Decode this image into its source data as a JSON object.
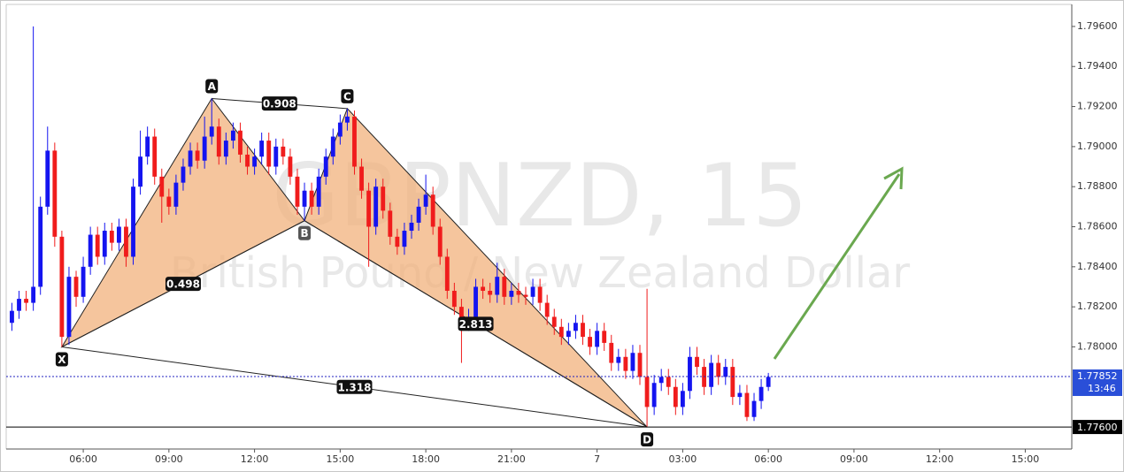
{
  "chart_data": {
    "type": "candlestick",
    "title": "GBPNZD, 15",
    "subtitle": "British Pound / New Zealand Dollar",
    "up_color": "#1414f0",
    "down_color": "#f01c1c",
    "x": [
      3.5,
      3.75,
      4,
      4.25,
      4.5,
      4.75,
      5,
      5.25,
      5.5,
      5.75,
      6,
      6.25,
      6.5,
      6.75,
      7,
      7.25,
      7.5,
      7.75,
      8,
      8.25,
      8.5,
      8.75,
      9,
      9.25,
      9.5,
      9.75,
      10,
      10.25,
      10.5,
      10.75,
      11,
      11.25,
      11.5,
      11.75,
      12,
      12.25,
      12.5,
      12.75,
      13,
      13.25,
      13.5,
      13.75,
      14,
      14.25,
      14.5,
      14.75,
      15,
      15.25,
      15.5,
      15.75,
      16,
      16.25,
      16.5,
      16.75,
      17,
      17.25,
      17.5,
      17.75,
      18,
      18.25,
      18.5,
      18.75,
      19,
      19.25,
      19.5,
      19.75,
      20,
      20.25,
      20.5,
      20.75,
      21,
      21.25,
      21.5,
      21.75,
      22,
      22.25,
      22.5,
      22.75,
      23,
      23.25,
      23.5,
      23.75,
      24,
      24.25,
      24.5,
      24.75,
      25,
      25.25,
      25.5,
      25.75,
      26,
      26.25,
      26.5,
      26.75,
      27,
      27.25,
      27.5,
      27.75,
      28,
      28.25,
      28.5,
      28.75,
      29,
      29.25,
      29.5,
      29.75,
      30
    ],
    "ohlc": [
      [
        1.7812,
        1.7822,
        1.7808,
        1.7818
      ],
      [
        1.7818,
        1.7828,
        1.7814,
        1.7824
      ],
      [
        1.7824,
        1.7828,
        1.7818,
        1.7822
      ],
      [
        1.7822,
        1.796,
        1.7818,
        1.783
      ],
      [
        1.783,
        1.7875,
        1.7826,
        1.787
      ],
      [
        1.787,
        1.791,
        1.7866,
        1.7898
      ],
      [
        1.7898,
        1.7902,
        1.785,
        1.7855
      ],
      [
        1.7855,
        1.7858,
        1.78,
        1.7805
      ],
      [
        1.7805,
        1.784,
        1.7801,
        1.7835
      ],
      [
        1.7835,
        1.7838,
        1.782,
        1.7825
      ],
      [
        1.7825,
        1.7845,
        1.7822,
        1.784
      ],
      [
        1.784,
        1.786,
        1.7836,
        1.7856
      ],
      [
        1.7856,
        1.786,
        1.7841,
        1.7845
      ],
      [
        1.7845,
        1.7862,
        1.7841,
        1.7858
      ],
      [
        1.7858,
        1.7862,
        1.7848,
        1.7852
      ],
      [
        1.7852,
        1.7864,
        1.7848,
        1.786
      ],
      [
        1.786,
        1.7864,
        1.784,
        1.7845
      ],
      [
        1.7845,
        1.7884,
        1.7841,
        1.788
      ],
      [
        1.788,
        1.7908,
        1.7876,
        1.7895
      ],
      [
        1.7895,
        1.791,
        1.7891,
        1.7905
      ],
      [
        1.7905,
        1.7909,
        1.7881,
        1.7885
      ],
      [
        1.7885,
        1.7889,
        1.7862,
        1.7875
      ],
      [
        1.7875,
        1.7879,
        1.7866,
        1.787
      ],
      [
        1.787,
        1.7886,
        1.7866,
        1.7882
      ],
      [
        1.7882,
        1.7894,
        1.7878,
        1.789
      ],
      [
        1.789,
        1.7902,
        1.7886,
        1.7898
      ],
      [
        1.7898,
        1.7902,
        1.7889,
        1.7893
      ],
      [
        1.7893,
        1.7915,
        1.7889,
        1.7905
      ],
      [
        1.7905,
        1.7924,
        1.7901,
        1.791
      ],
      [
        1.791,
        1.7914,
        1.7891,
        1.7895
      ],
      [
        1.7895,
        1.7907,
        1.7891,
        1.7903
      ],
      [
        1.7903,
        1.7912,
        1.7899,
        1.7908
      ],
      [
        1.7908,
        1.7912,
        1.7892,
        1.7896
      ],
      [
        1.7896,
        1.79,
        1.7886,
        1.789
      ],
      [
        1.789,
        1.7899,
        1.7886,
        1.7895
      ],
      [
        1.7895,
        1.7907,
        1.7891,
        1.7903
      ],
      [
        1.7903,
        1.7907,
        1.7886,
        1.789
      ],
      [
        1.789,
        1.7904,
        1.7886,
        1.79
      ],
      [
        1.79,
        1.7904,
        1.7891,
        1.7895
      ],
      [
        1.7895,
        1.7899,
        1.7881,
        1.7885
      ],
      [
        1.7885,
        1.7889,
        1.7866,
        1.787
      ],
      [
        1.787,
        1.7882,
        1.7863,
        1.7878
      ],
      [
        1.7878,
        1.7882,
        1.7866,
        1.787
      ],
      [
        1.787,
        1.7889,
        1.7866,
        1.7885
      ],
      [
        1.7885,
        1.7899,
        1.7881,
        1.7895
      ],
      [
        1.7895,
        1.7909,
        1.7891,
        1.7905
      ],
      [
        1.7905,
        1.7916,
        1.7901,
        1.7912
      ],
      [
        1.7912,
        1.7919,
        1.7908,
        1.7915
      ],
      [
        1.7915,
        1.7918,
        1.7886,
        1.789
      ],
      [
        1.789,
        1.7894,
        1.7874,
        1.7878
      ],
      [
        1.7878,
        1.7882,
        1.784,
        1.786
      ],
      [
        1.786,
        1.7884,
        1.7856,
        1.788
      ],
      [
        1.788,
        1.7884,
        1.7864,
        1.7868
      ],
      [
        1.7868,
        1.7872,
        1.7851,
        1.7855
      ],
      [
        1.7855,
        1.7859,
        1.7846,
        1.785
      ],
      [
        1.785,
        1.7862,
        1.7846,
        1.7858
      ],
      [
        1.7858,
        1.7866,
        1.7854,
        1.7862
      ],
      [
        1.7862,
        1.7874,
        1.7858,
        1.787
      ],
      [
        1.787,
        1.7886,
        1.7866,
        1.7876
      ],
      [
        1.7876,
        1.788,
        1.7856,
        1.786
      ],
      [
        1.786,
        1.7864,
        1.7841,
        1.7845
      ],
      [
        1.7845,
        1.7849,
        1.7824,
        1.7828
      ],
      [
        1.7828,
        1.7832,
        1.7816,
        1.782
      ],
      [
        1.782,
        1.7824,
        1.7792,
        1.7812
      ],
      [
        1.7812,
        1.7819,
        1.7808,
        1.7815
      ],
      [
        1.7815,
        1.7834,
        1.7811,
        1.783
      ],
      [
        1.783,
        1.7834,
        1.7824,
        1.7828
      ],
      [
        1.7828,
        1.7832,
        1.7822,
        1.7826
      ],
      [
        1.7826,
        1.7842,
        1.7822,
        1.7835
      ],
      [
        1.7835,
        1.7839,
        1.7821,
        1.7825
      ],
      [
        1.7825,
        1.7832,
        1.7821,
        1.7828
      ],
      [
        1.7828,
        1.7832,
        1.7822,
        1.7826
      ],
      [
        1.7826,
        1.783,
        1.7821,
        1.7825
      ],
      [
        1.7825,
        1.7834,
        1.7821,
        1.783
      ],
      [
        1.783,
        1.7834,
        1.7818,
        1.7822
      ],
      [
        1.7822,
        1.7826,
        1.7811,
        1.7815
      ],
      [
        1.7815,
        1.7819,
        1.7806,
        1.781
      ],
      [
        1.781,
        1.7814,
        1.7801,
        1.7805
      ],
      [
        1.7805,
        1.7812,
        1.7801,
        1.7808
      ],
      [
        1.7808,
        1.7816,
        1.7804,
        1.7812
      ],
      [
        1.7812,
        1.7816,
        1.7801,
        1.7805
      ],
      [
        1.7805,
        1.7809,
        1.7796,
        1.78
      ],
      [
        1.78,
        1.7812,
        1.7796,
        1.7808
      ],
      [
        1.7808,
        1.7812,
        1.7798,
        1.7802
      ],
      [
        1.7802,
        1.7806,
        1.7788,
        1.7792
      ],
      [
        1.7792,
        1.7799,
        1.7788,
        1.7795
      ],
      [
        1.7795,
        1.7799,
        1.7784,
        1.7788
      ],
      [
        1.7788,
        1.7801,
        1.7784,
        1.7797
      ],
      [
        1.7797,
        1.7801,
        1.7781,
        1.7785
      ],
      [
        1.7785,
        1.7829,
        1.776,
        1.777
      ],
      [
        1.777,
        1.7786,
        1.7766,
        1.7782
      ],
      [
        1.7782,
        1.7789,
        1.7778,
        1.7785
      ],
      [
        1.7785,
        1.7789,
        1.7776,
        1.778
      ],
      [
        1.778,
        1.7784,
        1.7766,
        1.777
      ],
      [
        1.777,
        1.7782,
        1.7766,
        1.7778
      ],
      [
        1.7778,
        1.78,
        1.7774,
        1.7795
      ],
      [
        1.7795,
        1.78,
        1.7786,
        1.779
      ],
      [
        1.779,
        1.7794,
        1.7776,
        1.778
      ],
      [
        1.778,
        1.7796,
        1.7776,
        1.7792
      ],
      [
        1.7792,
        1.7796,
        1.7781,
        1.7785
      ],
      [
        1.7785,
        1.7794,
        1.7781,
        1.779
      ],
      [
        1.779,
        1.7794,
        1.7771,
        1.7775
      ],
      [
        1.7775,
        1.7781,
        1.7771,
        1.7777
      ],
      [
        1.7777,
        1.7781,
        1.7763,
        1.7765
      ],
      [
        1.7765,
        1.7777,
        1.7763,
        1.7773
      ],
      [
        1.7773,
        1.7784,
        1.7769,
        1.778
      ],
      [
        1.778,
        1.7787,
        1.7778,
        1.7785
      ]
    ],
    "xlim": [
      3.3,
      40.63
    ],
    "ylim": [
      1.7749,
      1.7971
    ],
    "xticks": [
      {
        "value": 6,
        "label": "06:00"
      },
      {
        "value": 9,
        "label": "09:00"
      },
      {
        "value": 12,
        "label": "12:00"
      },
      {
        "value": 15,
        "label": "15:00"
      },
      {
        "value": 18,
        "label": "18:00"
      },
      {
        "value": 21,
        "label": "21:00"
      },
      {
        "value": 24,
        "label": "7"
      },
      {
        "value": 27,
        "label": "03:00"
      },
      {
        "value": 30,
        "label": "06:00"
      },
      {
        "value": 33,
        "label": "09:00"
      },
      {
        "value": 36,
        "label": "12:00"
      },
      {
        "value": 39,
        "label": "15:00"
      }
    ],
    "yticks": [
      {
        "value": 1.796,
        "label": "1.79600"
      },
      {
        "value": 1.794,
        "label": "1.79400"
      },
      {
        "value": 1.792,
        "label": "1.79200"
      },
      {
        "value": 1.79,
        "label": "1.79000"
      },
      {
        "value": 1.788,
        "label": "1.78800"
      },
      {
        "value": 1.786,
        "label": "1.78600"
      },
      {
        "value": 1.784,
        "label": "1.78400"
      },
      {
        "value": 1.782,
        "label": "1.78200"
      },
      {
        "value": 1.78,
        "label": "1.78000"
      }
    ],
    "grid": false,
    "pattern": {
      "fill": "#f2b27c",
      "points": [
        {
          "label": "X",
          "x": 5.25,
          "y": 1.78
        },
        {
          "label": "A",
          "x": 10.5,
          "y": 1.7924
        },
        {
          "label": "B",
          "x": 13.75,
          "y": 1.7863
        },
        {
          "label": "C",
          "x": 15.25,
          "y": 1.7919
        },
        {
          "label": "D",
          "x": 25.75,
          "y": 1.776
        }
      ],
      "ratios": [
        0.498,
        0.908,
        2.813,
        1.318
      ]
    },
    "level": {
      "value": 1.776,
      "label": "1.77600"
    },
    "last_price": 1.77852,
    "last_time": "13:46"
  }
}
